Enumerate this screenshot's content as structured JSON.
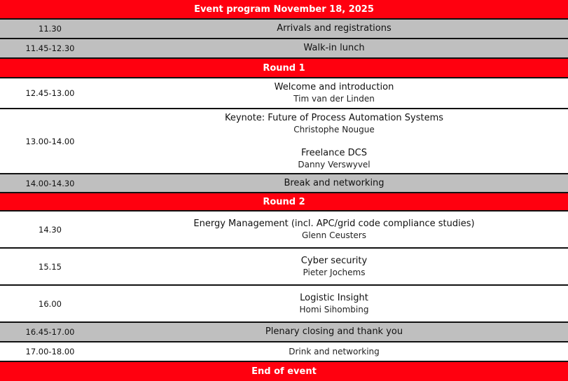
{
  "title": "Event program November 18, 2025",
  "colors": {
    "accent": "#ff000f",
    "gray": "#bfbfbf"
  },
  "rows": [
    {
      "time": "11.30",
      "title": "Arrivals and registrations"
    },
    {
      "time": "11.45-12.30",
      "title": "Walk-in lunch"
    },
    {
      "section": "Round 1"
    },
    {
      "time": "12.45-13.00",
      "title": "Welcome and introduction",
      "speaker": "Tim van der Linden"
    },
    {
      "time": "13.00-14.00",
      "title": "Keynote: Future of Process Automation Systems",
      "speaker": "Christophe Nougue",
      "title2": "Freelance DCS",
      "speaker2": "Danny Verswyvel"
    },
    {
      "time": "14.00-14.30",
      "title": "Break and networking"
    },
    {
      "section": "Round 2"
    },
    {
      "time": "14.30",
      "title": "Energy Management (incl. APC/grid code compliance studies)",
      "speaker": "Glenn Ceusters"
    },
    {
      "time": "15.15",
      "title": "Cyber security",
      "speaker": "Pieter Jochems"
    },
    {
      "time": "16.00",
      "title": "Logistic Insight",
      "speaker": "Homi Sihombing"
    },
    {
      "time": "16.45-17.00",
      "title": "Plenary closing and thank you"
    },
    {
      "time": "17.00-18.00",
      "title": "Drink and networking"
    },
    {
      "section": "End of event"
    }
  ]
}
